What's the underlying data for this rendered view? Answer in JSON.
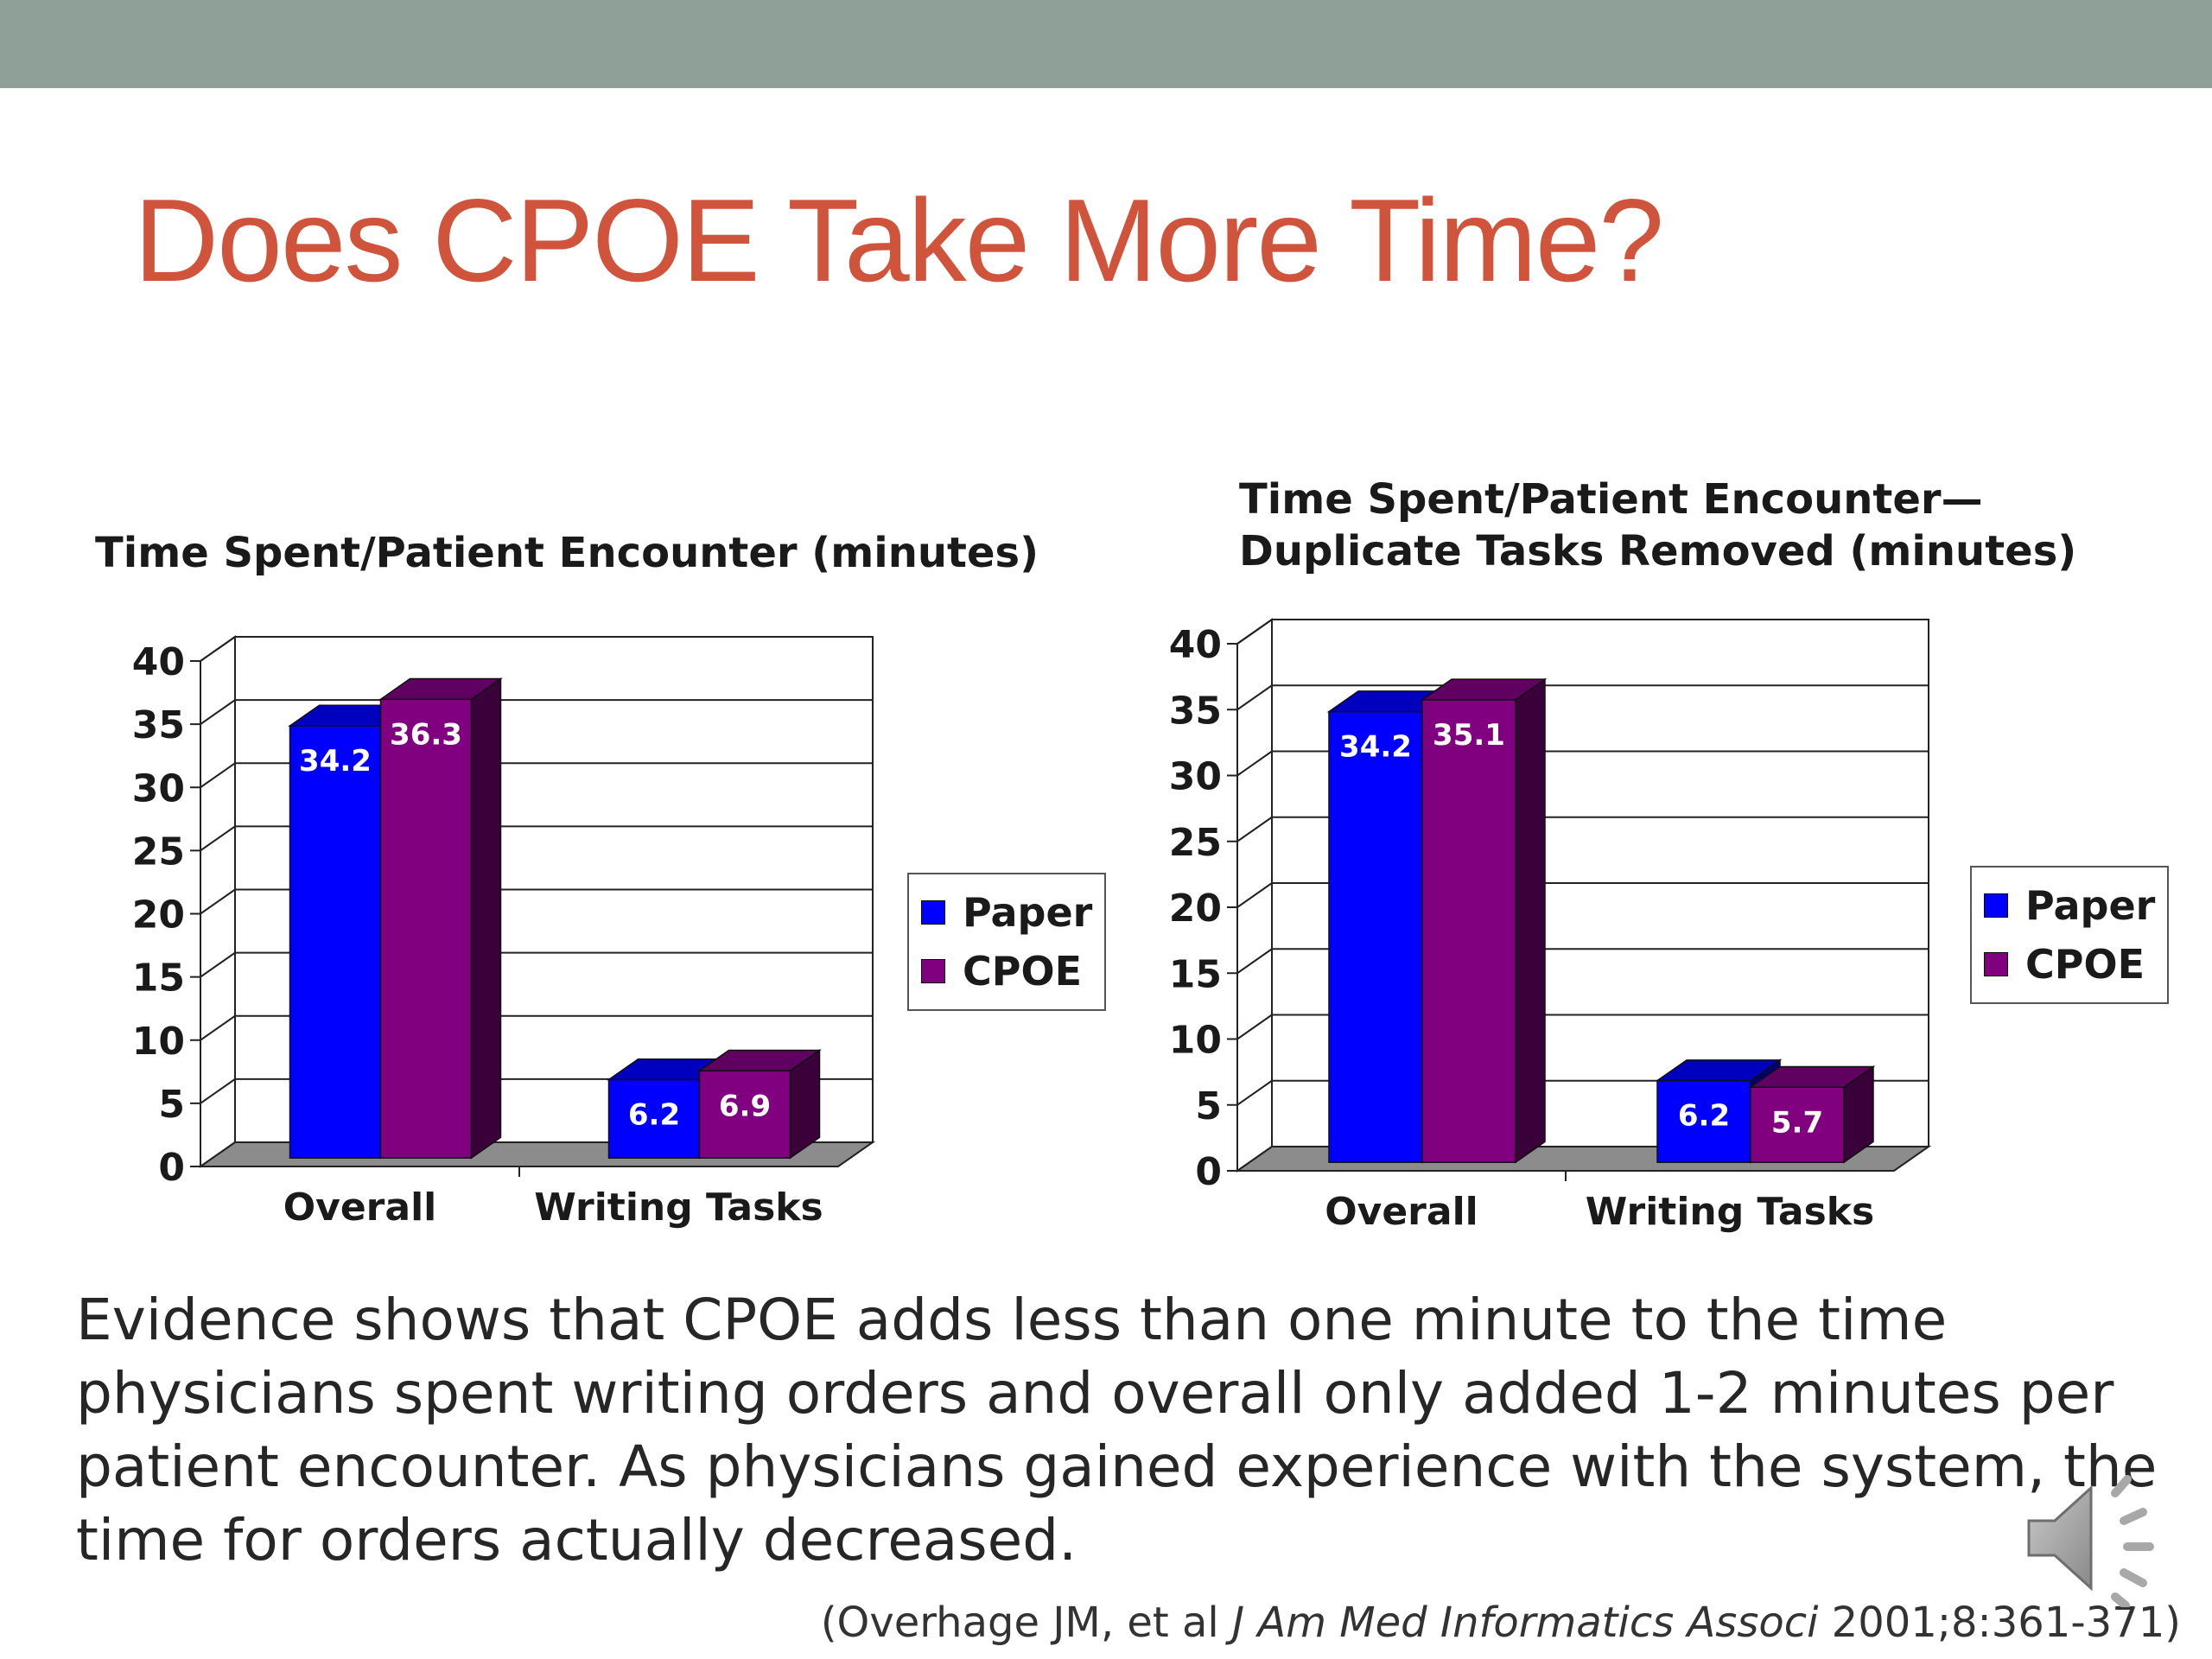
{
  "slide": {
    "title": "Does CPOE Take More Time?",
    "body": "Evidence shows that CPOE adds less than one minute to the time physicians spent writing orders and overall only added 1-2 minutes per patient encounter. As physicians gained experience with the system, the time for orders actually decreased.",
    "citation": {
      "prefix": "(Overhage JM, et al ",
      "journal": "J Am Med Informatics Associ",
      "suffix": " 2001;8:361-371)"
    }
  },
  "icons": {
    "speaker": "speaker-icon"
  },
  "colors": {
    "top_bar": "#8fa099",
    "title": "#d0533b",
    "paper": "#0000ff",
    "cpoe": "#800080"
  },
  "chart_data": [
    {
      "type": "bar",
      "title": "Time Spent/Patient Encounter (minutes)",
      "title_lines": [
        "Time Spent/Patient Encounter (minutes)"
      ],
      "categories": [
        "Overall",
        "Writing Tasks"
      ],
      "series": [
        {
          "name": "Paper",
          "values": [
            34.2,
            6.2
          ],
          "labels": [
            "34.2",
            "6.2"
          ],
          "color": "#0000ff"
        },
        {
          "name": "CPOE",
          "values": [
            36.3,
            6.9
          ],
          "labels": [
            "36.3",
            "6.9"
          ],
          "color": "#800080"
        }
      ],
      "yticks": [
        "0",
        "5",
        "10",
        "15",
        "20",
        "25",
        "30",
        "35",
        "40"
      ],
      "ylim": [
        0,
        40
      ],
      "grid": true,
      "legend": "right",
      "style": "3d"
    },
    {
      "type": "bar",
      "title": "Time Spent/Patient Encounter— Duplicate Tasks Removed (minutes)",
      "title_lines": [
        "Time Spent/Patient Encounter—",
        "Duplicate Tasks Removed (minutes)"
      ],
      "categories": [
        "Overall",
        "Writing Tasks"
      ],
      "series": [
        {
          "name": "Paper",
          "values": [
            34.2,
            6.2
          ],
          "labels": [
            "34.2",
            "6.2"
          ],
          "color": "#0000ff"
        },
        {
          "name": "CPOE",
          "values": [
            35.1,
            5.7
          ],
          "labels": [
            "35.1",
            "5.7"
          ],
          "color": "#800080"
        }
      ],
      "yticks": [
        "0",
        "5",
        "10",
        "15",
        "20",
        "25",
        "30",
        "35",
        "40"
      ],
      "ylim": [
        0,
        40
      ],
      "grid": true,
      "legend": "right",
      "style": "3d"
    }
  ]
}
